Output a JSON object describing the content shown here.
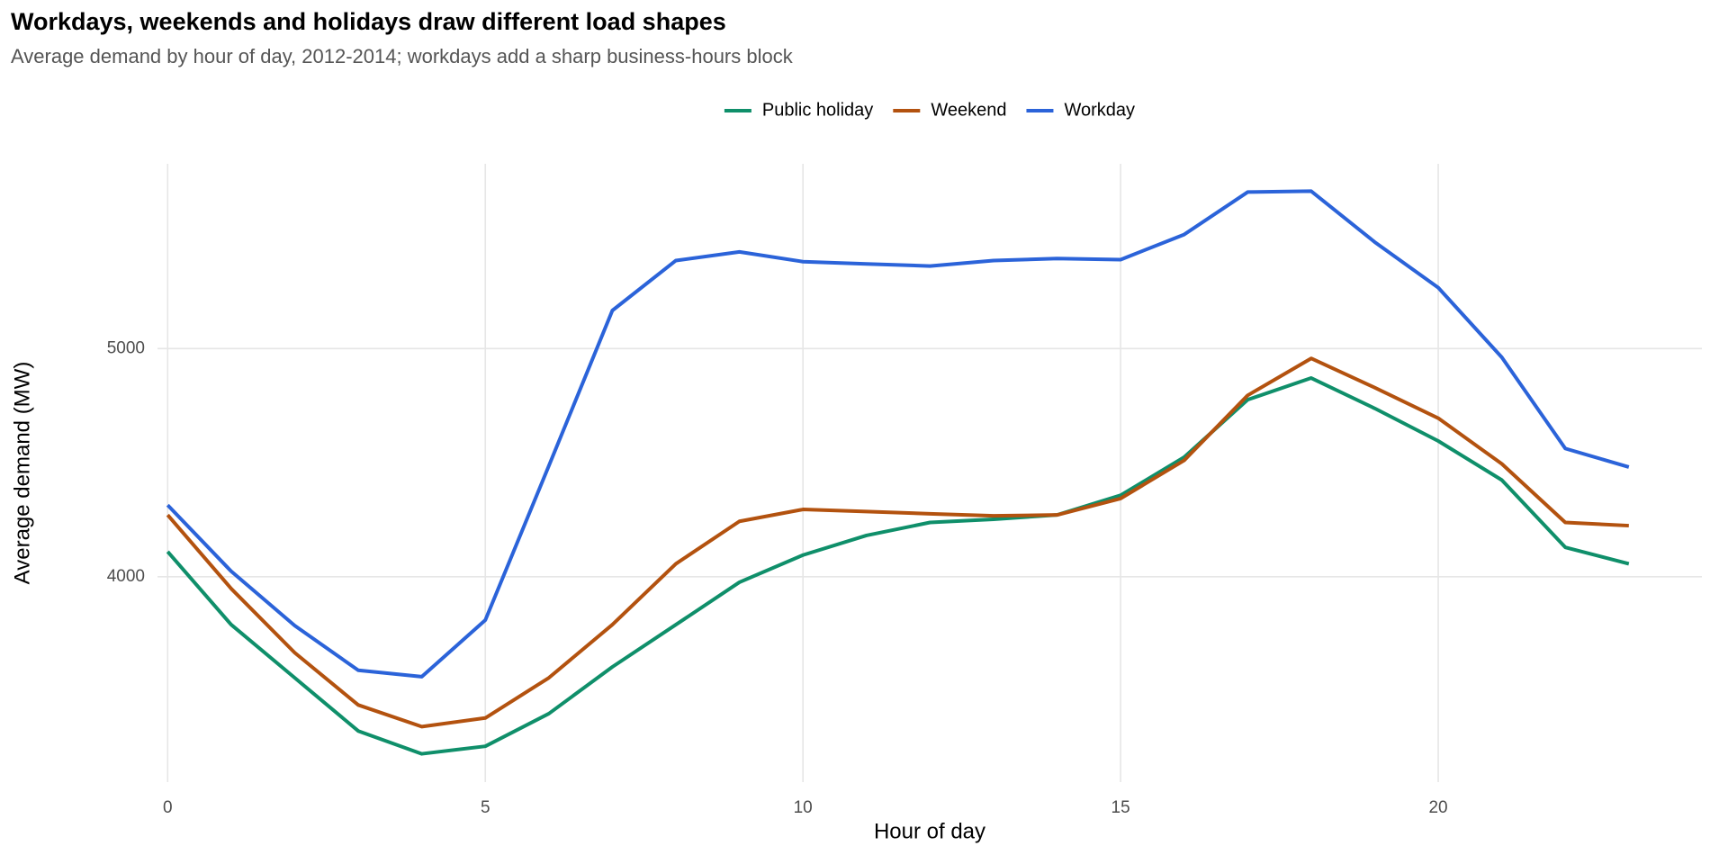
{
  "chart_data": {
    "type": "line",
    "title": "Workdays, weekends and holidays draw different load shapes",
    "subtitle": "Average demand by hour of day, 2012-2014; workdays add a sharp business-hours block",
    "x_label": "Hour of day",
    "y_label": "Average demand (MW)",
    "x": [
      0,
      1,
      2,
      3,
      4,
      5,
      6,
      7,
      8,
      9,
      10,
      11,
      12,
      13,
      14,
      15,
      16,
      17,
      18,
      19,
      20,
      21,
      22,
      23
    ],
    "series": [
      {
        "name": "Public holiday",
        "color": "#0f8f6a",
        "values": [
          4110,
          3790,
          3557,
          3324,
          3224,
          3257,
          3400,
          3605,
          3790,
          3976,
          4095,
          4181,
          4238,
          4252,
          4271,
          4357,
          4524,
          4776,
          4871,
          4738,
          4595,
          4424,
          4129,
          4057
        ]
      },
      {
        "name": "Weekend",
        "color": "#b3520f",
        "values": [
          4271,
          3948,
          3667,
          3438,
          3343,
          3381,
          3557,
          3790,
          4057,
          4243,
          4295,
          4286,
          4276,
          4267,
          4271,
          4343,
          4510,
          4795,
          4957,
          4829,
          4695,
          4495,
          4238,
          4224
        ]
      },
      {
        "name": "Workday",
        "color": "#2b63d9",
        "values": [
          4314,
          4024,
          3786,
          3590,
          3562,
          3810,
          4486,
          5167,
          5386,
          5424,
          5381,
          5371,
          5362,
          5386,
          5395,
          5390,
          5500,
          5686,
          5690,
          5467,
          5267,
          4962,
          4562,
          4481
        ]
      }
    ],
    "xlim": [
      -0.16,
      24.15
    ],
    "ylim": [
      3100,
      5810
    ],
    "xticks": [
      0,
      5,
      10,
      15,
      20
    ],
    "yticks": [
      4000,
      5000
    ],
    "grid": true,
    "legend_position": "top"
  }
}
